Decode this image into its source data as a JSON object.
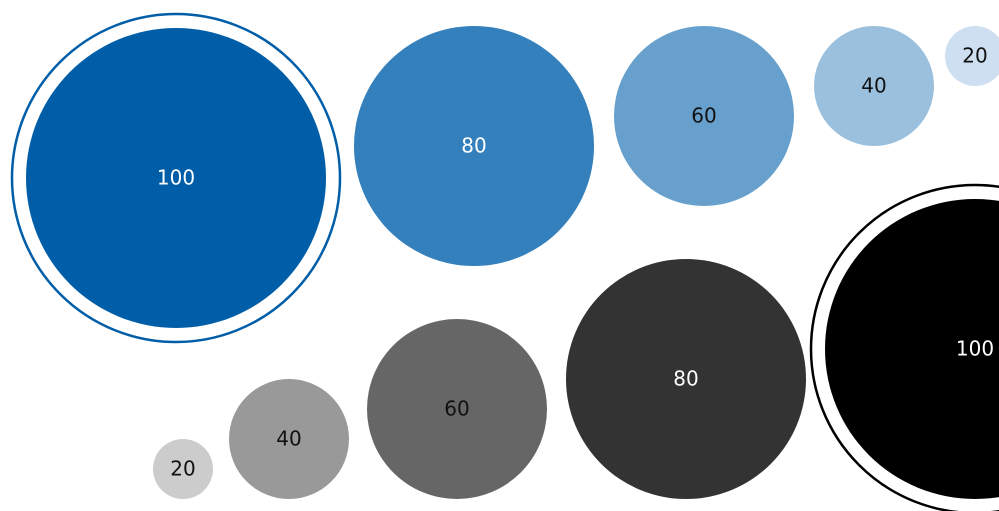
{
  "chart_data": {
    "type": "bubble",
    "title": "",
    "xlabel": "",
    "ylabel": "",
    "grid": false,
    "legend": "none",
    "series": [
      {
        "color": "#005ea8",
        "colors": [
          "#005ea8",
          "#3480bd",
          "#67a0cc",
          "#9bc0dd",
          "#cddff0"
        ],
        "label_colors": [
          "#ffffff",
          "#ffffff",
          "#111111",
          "#111111",
          "#111111"
        ],
        "values": [
          100,
          80,
          60,
          40,
          20
        ],
        "labels": [
          "100",
          "80",
          "60",
          "40",
          "20"
        ],
        "highlight": "100"
      },
      {
        "color": "#000000",
        "colors": [
          "#cccccc",
          "#999999",
          "#666666",
          "#333333",
          "#000000"
        ],
        "label_colors": [
          "#111111",
          "#111111",
          "#111111",
          "#ffffff",
          "#ffffff"
        ],
        "values": [
          20,
          40,
          60,
          80,
          100
        ],
        "labels": [
          "20",
          "40",
          "60",
          "80",
          "100"
        ],
        "highlight": "100"
      }
    ]
  }
}
